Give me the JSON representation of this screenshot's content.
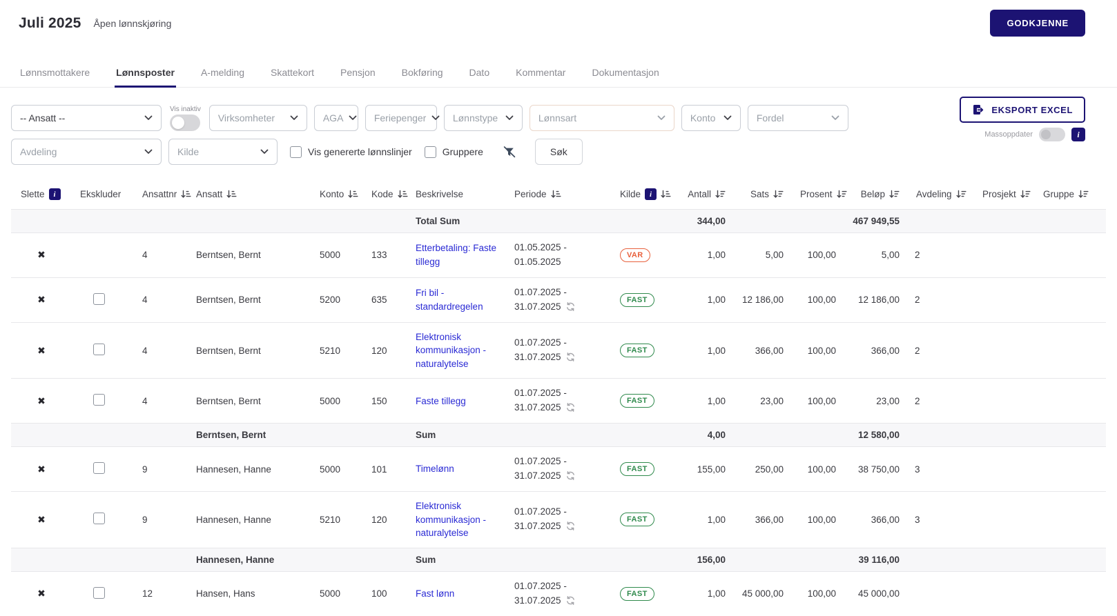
{
  "header": {
    "title": "Juli 2025",
    "subtitle": "Åpen lønnskjøring",
    "approve_label": "GODKJENNE"
  },
  "tabs": [
    {
      "id": "lonnsmottakere",
      "label": "Lønnsmottakere",
      "active": false
    },
    {
      "id": "lonnsposter",
      "label": "Lønnsposter",
      "active": true
    },
    {
      "id": "a-melding",
      "label": "A-melding",
      "active": false
    },
    {
      "id": "skattekort",
      "label": "Skattekort",
      "active": false
    },
    {
      "id": "pensjon",
      "label": "Pensjon",
      "active": false
    },
    {
      "id": "bokforing",
      "label": "Bokføring",
      "active": false
    },
    {
      "id": "dato",
      "label": "Dato",
      "active": false
    },
    {
      "id": "kommentar",
      "label": "Kommentar",
      "active": false
    },
    {
      "id": "dokumentasjon",
      "label": "Dokumentasjon",
      "active": false
    }
  ],
  "filters": {
    "ansatt_select": {
      "id": "ansatt",
      "label": "-- Ansatt --",
      "muted": false
    },
    "vis_inaktiv_label": "Vis inaktiv",
    "vis_inaktiv_on": false,
    "row1_selects": [
      {
        "id": "virksomheter",
        "label": "Virksomheter",
        "muted": true
      },
      {
        "id": "aga",
        "label": "AGA",
        "muted": true
      },
      {
        "id": "feriepenger",
        "label": "Feriepenger",
        "muted": true
      },
      {
        "id": "lonnstype",
        "label": "Lønnstype",
        "muted": true
      },
      {
        "id": "lonnsart",
        "label": "Lønnsart",
        "muted": true,
        "chev": "muted"
      },
      {
        "id": "konto",
        "label": "Konto",
        "muted": true
      },
      {
        "id": "fordel",
        "label": "Fordel",
        "muted": true,
        "chev": "muted"
      }
    ],
    "row2_selects": [
      {
        "id": "avdeling",
        "label": "Avdeling",
        "muted": true
      },
      {
        "id": "kilde",
        "label": "Kilde",
        "muted": true
      }
    ],
    "generated_label": "Vis genererte lønnslinjer",
    "generated_checked": false,
    "gruppere_label": "Gruppere",
    "gruppere_checked": false,
    "sok_label": "Søk",
    "export_label": "EKSPORT EXCEL",
    "massoppdater_label": "Massoppdater",
    "massoppdater_on": false
  },
  "table": {
    "columns": [
      {
        "key": "slette",
        "label": "Slette",
        "info": true,
        "sort": null
      },
      {
        "key": "ekskluder",
        "label": "Ekskluder",
        "info": false,
        "sort": null
      },
      {
        "key": "ansattnr",
        "label": "Ansattnr",
        "info": false,
        "sort": "a"
      },
      {
        "key": "ansatt",
        "label": "Ansatt",
        "info": false,
        "sort": "a"
      },
      {
        "key": "konto",
        "label": "Konto",
        "info": false,
        "sort": "a"
      },
      {
        "key": "kode",
        "label": "Kode",
        "info": false,
        "sort": "a"
      },
      {
        "key": "beskrivelse",
        "label": "Beskrivelse",
        "info": false,
        "sort": null
      },
      {
        "key": "periode",
        "label": "Periode",
        "info": false,
        "sort": "a"
      },
      {
        "key": "kilde",
        "label": "Kilde",
        "info": true,
        "sort": "a"
      },
      {
        "key": "antall",
        "label": "Antall",
        "info": false,
        "sort": "n"
      },
      {
        "key": "sats",
        "label": "Sats",
        "info": false,
        "sort": "n"
      },
      {
        "key": "prosent",
        "label": "Prosent",
        "info": false,
        "sort": "n"
      },
      {
        "key": "belop",
        "label": "Beløp",
        "info": false,
        "sort": "n"
      },
      {
        "key": "avdeling",
        "label": "Avdeling",
        "info": false,
        "sort": "n"
      },
      {
        "key": "prosjekt",
        "label": "Prosjekt",
        "info": false,
        "sort": "n"
      },
      {
        "key": "gruppe",
        "label": "Gruppe",
        "info": false,
        "sort": "n"
      }
    ],
    "rows": [
      {
        "type": "total",
        "label": "Total Sum",
        "antall": "344,00",
        "belop": "467 949,55"
      },
      {
        "type": "data",
        "has_checkbox": false,
        "ansattnr": "4",
        "ansatt": "Berntsen, Bernt",
        "konto": "5000",
        "kode": "133",
        "beskrivelse": "Etterbetaling: Faste tillegg",
        "periode_start": "01.05.2025",
        "periode_end": "01.05.2025",
        "refresh": false,
        "kilde": "VAR",
        "antall": "1,00",
        "sats": "5,00",
        "prosent": "100,00",
        "belop": "5,00",
        "avdeling": "2",
        "prosjekt": "",
        "gruppe": ""
      },
      {
        "type": "data",
        "has_checkbox": true,
        "ansattnr": "4",
        "ansatt": "Berntsen, Bernt",
        "konto": "5200",
        "kode": "635",
        "beskrivelse": "Fri bil - standardregelen",
        "periode_start": "01.07.2025",
        "periode_end": "31.07.2025",
        "refresh": true,
        "kilde": "FAST",
        "antall": "1,00",
        "sats": "12 186,00",
        "prosent": "100,00",
        "belop": "12 186,00",
        "avdeling": "2",
        "prosjekt": "",
        "gruppe": ""
      },
      {
        "type": "data",
        "has_checkbox": true,
        "ansattnr": "4",
        "ansatt": "Berntsen, Bernt",
        "konto": "5210",
        "kode": "120",
        "beskrivelse": "Elektronisk kommunikasjon - naturalytelse",
        "periode_start": "01.07.2025",
        "periode_end": "31.07.2025",
        "refresh": true,
        "kilde": "FAST",
        "antall": "1,00",
        "sats": "366,00",
        "prosent": "100,00",
        "belop": "366,00",
        "avdeling": "2",
        "prosjekt": "",
        "gruppe": ""
      },
      {
        "type": "data",
        "has_checkbox": true,
        "ansattnr": "4",
        "ansatt": "Berntsen, Bernt",
        "konto": "5000",
        "kode": "150",
        "beskrivelse": "Faste tillegg",
        "periode_start": "01.07.2025",
        "periode_end": "31.07.2025",
        "refresh": true,
        "kilde": "FAST",
        "antall": "1,00",
        "sats": "23,00",
        "prosent": "100,00",
        "belop": "23,00",
        "avdeling": "2",
        "prosjekt": "",
        "gruppe": ""
      },
      {
        "type": "subtotal",
        "ansatt": "Berntsen, Bernt",
        "label": "Sum",
        "antall": "4,00",
        "belop": "12 580,00"
      },
      {
        "type": "data",
        "has_checkbox": true,
        "ansattnr": "9",
        "ansatt": "Hannesen, Hanne",
        "konto": "5000",
        "kode": "101",
        "beskrivelse": "Timelønn",
        "periode_start": "01.07.2025",
        "periode_end": "31.07.2025",
        "refresh": true,
        "kilde": "FAST",
        "antall": "155,00",
        "sats": "250,00",
        "prosent": "100,00",
        "belop": "38 750,00",
        "avdeling": "3",
        "prosjekt": "",
        "gruppe": ""
      },
      {
        "type": "data",
        "has_checkbox": true,
        "ansattnr": "9",
        "ansatt": "Hannesen, Hanne",
        "konto": "5210",
        "kode": "120",
        "beskrivelse": "Elektronisk kommunikasjon - naturalytelse",
        "periode_start": "01.07.2025",
        "periode_end": "31.07.2025",
        "refresh": true,
        "kilde": "FAST",
        "antall": "1,00",
        "sats": "366,00",
        "prosent": "100,00",
        "belop": "366,00",
        "avdeling": "3",
        "prosjekt": "",
        "gruppe": ""
      },
      {
        "type": "subtotal",
        "ansatt": "Hannesen, Hanne",
        "label": "Sum",
        "antall": "156,00",
        "belop": "39 116,00"
      },
      {
        "type": "data",
        "has_checkbox": true,
        "ansattnr": "12",
        "ansatt": "Hansen, Hans",
        "konto": "5000",
        "kode": "100",
        "beskrivelse": "Fast lønn",
        "periode_start": "01.07.2025",
        "periode_end": "31.07.2025",
        "refresh": true,
        "kilde": "FAST",
        "antall": "1,00",
        "sats": "45 000,00",
        "prosent": "100,00",
        "belop": "45 000,00",
        "avdeling": "",
        "prosjekt": "",
        "gruppe": ""
      }
    ]
  },
  "colors": {
    "accent_navy": "#1c1373",
    "link_blue": "#2a2ad4",
    "fast_green": "#2f8a4c",
    "var_orange": "#e8603c"
  }
}
